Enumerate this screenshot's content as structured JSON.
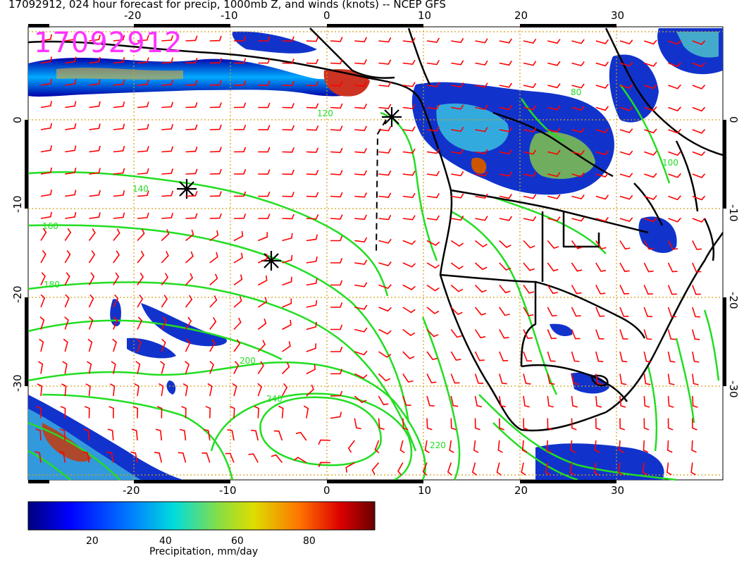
{
  "header": {
    "title": "17092912, 024 hour forecast for precip, 1000mb Z, and winds (knots) -- NCEP GFS",
    "stamp": "17092912"
  },
  "map": {
    "lon_ticks": [
      "-20",
      "-10",
      "0",
      "10",
      "20",
      "30"
    ],
    "lat_ticks": [
      "0",
      "-10",
      "-20",
      "-30"
    ],
    "colors": {
      "contour": "#22dd22",
      "wind_barb": "#ff0000",
      "coastline": "#000000",
      "grid": "#d4a017"
    },
    "contour_labels": [
      "140",
      "160",
      "180",
      "200",
      "220",
      "240",
      "120",
      "100",
      "80"
    ]
  },
  "colorbar": {
    "ticks": [
      "20",
      "40",
      "60",
      "80"
    ],
    "label": "Precipitation, mm/day",
    "colors": [
      "#00007f",
      "#0000ff",
      "#00bfff",
      "#7fff7f",
      "#ffff00",
      "#ff7f00",
      "#ff0000",
      "#7f0000"
    ]
  }
}
